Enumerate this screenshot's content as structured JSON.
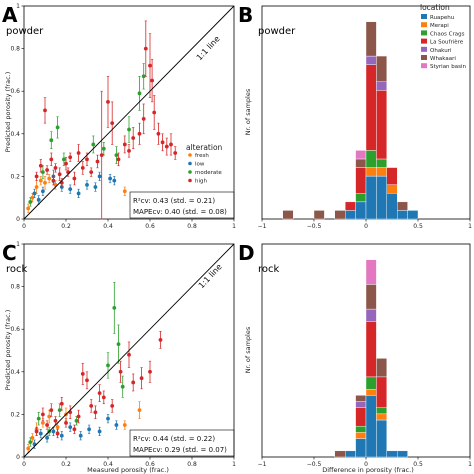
{
  "chart_data": [
    {
      "panel": "A",
      "subtitle": "powder",
      "type": "scatter",
      "xlabel": "",
      "ylabel": "Predicted porosity (frac.)",
      "xlim": [
        0,
        1
      ],
      "ylim": [
        0,
        1
      ],
      "xticks": [
        "0",
        "0.2",
        "0.4",
        "0.6",
        "0.8",
        "1"
      ],
      "yticks": [
        "0",
        "0.2",
        "0.4",
        "0.6",
        "0.8",
        "1"
      ],
      "line_label": "1:1 line",
      "legend_title": "alteration",
      "legend": [
        {
          "name": "fresh",
          "color": "#ff7f0e"
        },
        {
          "name": "low",
          "color": "#1f77b4"
        },
        {
          "name": "moderate",
          "color": "#2ca02c"
        },
        {
          "name": "high",
          "color": "#d62728"
        }
      ],
      "stats": {
        "r2": "R²cv: 0.43 (std. = 0.21)",
        "mape": "MAPEcv: 0.40 (std. = 0.08)"
      },
      "points": [
        {
          "x": 0.02,
          "y": 0.05,
          "e": 0.02,
          "s": "fresh"
        },
        {
          "x": 0.04,
          "y": 0.1,
          "e": 0.02,
          "s": "fresh"
        },
        {
          "x": 0.06,
          "y": 0.15,
          "e": 0.03,
          "s": "fresh"
        },
        {
          "x": 0.05,
          "y": 0.12,
          "e": 0.02,
          "s": "low"
        },
        {
          "x": 0.08,
          "y": 0.18,
          "e": 0.02,
          "s": "fresh"
        },
        {
          "x": 0.1,
          "y": 0.17,
          "e": 0.03,
          "s": "fresh"
        },
        {
          "x": 0.12,
          "y": 0.19,
          "e": 0.02,
          "s": "fresh"
        },
        {
          "x": 0.15,
          "y": 0.16,
          "e": 0.02,
          "s": "fresh"
        },
        {
          "x": 0.07,
          "y": 0.09,
          "e": 0.02,
          "s": "low"
        },
        {
          "x": 0.09,
          "y": 0.13,
          "e": 0.02,
          "s": "low"
        },
        {
          "x": 0.14,
          "y": 0.2,
          "e": 0.03,
          "s": "low"
        },
        {
          "x": 0.18,
          "y": 0.15,
          "e": 0.02,
          "s": "low"
        },
        {
          "x": 0.22,
          "y": 0.14,
          "e": 0.02,
          "s": "low"
        },
        {
          "x": 0.26,
          "y": 0.12,
          "e": 0.02,
          "s": "low"
        },
        {
          "x": 0.3,
          "y": 0.16,
          "e": 0.02,
          "s": "low"
        },
        {
          "x": 0.34,
          "y": 0.15,
          "e": 0.02,
          "s": "low"
        },
        {
          "x": 0.36,
          "y": 0.2,
          "e": 0.02,
          "s": "low"
        },
        {
          "x": 0.41,
          "y": 0.19,
          "e": 0.02,
          "s": "low"
        },
        {
          "x": 0.48,
          "y": 0.13,
          "e": 0.02,
          "s": "fresh"
        },
        {
          "x": 0.43,
          "y": 0.18,
          "e": 0.02,
          "s": "low"
        },
        {
          "x": 0.03,
          "y": 0.08,
          "e": 0.02,
          "s": "moderate"
        },
        {
          "x": 0.09,
          "y": 0.22,
          "e": 0.03,
          "s": "moderate"
        },
        {
          "x": 0.13,
          "y": 0.37,
          "e": 0.04,
          "s": "moderate"
        },
        {
          "x": 0.16,
          "y": 0.43,
          "e": 0.05,
          "s": "moderate"
        },
        {
          "x": 0.19,
          "y": 0.28,
          "e": 0.03,
          "s": "moderate"
        },
        {
          "x": 0.33,
          "y": 0.35,
          "e": 0.04,
          "s": "moderate"
        },
        {
          "x": 0.38,
          "y": 0.33,
          "e": 0.03,
          "s": "moderate"
        },
        {
          "x": 0.44,
          "y": 0.3,
          "e": 0.04,
          "s": "moderate"
        },
        {
          "x": 0.5,
          "y": 0.42,
          "e": 0.06,
          "s": "moderate"
        },
        {
          "x": 0.55,
          "y": 0.59,
          "e": 0.08,
          "s": "moderate"
        },
        {
          "x": 0.57,
          "y": 0.67,
          "e": 0.06,
          "s": "moderate"
        },
        {
          "x": 0.06,
          "y": 0.2,
          "e": 0.02,
          "s": "high"
        },
        {
          "x": 0.08,
          "y": 0.25,
          "e": 0.03,
          "s": "high"
        },
        {
          "x": 0.1,
          "y": 0.51,
          "e": 0.06,
          "s": "high"
        },
        {
          "x": 0.11,
          "y": 0.23,
          "e": 0.02,
          "s": "high"
        },
        {
          "x": 0.13,
          "y": 0.28,
          "e": 0.03,
          "s": "high"
        },
        {
          "x": 0.15,
          "y": 0.24,
          "e": 0.02,
          "s": "high"
        },
        {
          "x": 0.17,
          "y": 0.21,
          "e": 0.03,
          "s": "high"
        },
        {
          "x": 0.2,
          "y": 0.26,
          "e": 0.03,
          "s": "high"
        },
        {
          "x": 0.22,
          "y": 0.29,
          "e": 0.02,
          "s": "high"
        },
        {
          "x": 0.24,
          "y": 0.19,
          "e": 0.03,
          "s": "high"
        },
        {
          "x": 0.26,
          "y": 0.31,
          "e": 0.04,
          "s": "high"
        },
        {
          "x": 0.28,
          "y": 0.24,
          "e": 0.03,
          "s": "high"
        },
        {
          "x": 0.3,
          "y": 0.28,
          "e": 0.03,
          "s": "high"
        },
        {
          "x": 0.32,
          "y": 0.22,
          "e": 0.02,
          "s": "high"
        },
        {
          "x": 0.35,
          "y": 0.27,
          "e": 0.03,
          "s": "high"
        },
        {
          "x": 0.37,
          "y": 0.3,
          "e": 0.3,
          "s": "high"
        },
        {
          "x": 0.4,
          "y": 0.55,
          "e": 0.12,
          "s": "high"
        },
        {
          "x": 0.42,
          "y": 0.45,
          "e": 0.1,
          "s": "high"
        },
        {
          "x": 0.45,
          "y": 0.28,
          "e": 0.03,
          "s": "high"
        },
        {
          "x": 0.48,
          "y": 0.35,
          "e": 0.04,
          "s": "high"
        },
        {
          "x": 0.5,
          "y": 0.32,
          "e": 0.03,
          "s": "high"
        },
        {
          "x": 0.52,
          "y": 0.38,
          "e": 0.05,
          "s": "high"
        },
        {
          "x": 0.55,
          "y": 0.4,
          "e": 0.05,
          "s": "high"
        },
        {
          "x": 0.57,
          "y": 0.47,
          "e": 0.07,
          "s": "high"
        },
        {
          "x": 0.58,
          "y": 0.8,
          "e": 0.13,
          "s": "high"
        },
        {
          "x": 0.6,
          "y": 0.72,
          "e": 0.15,
          "s": "high"
        },
        {
          "x": 0.61,
          "y": 0.65,
          "e": 0.1,
          "s": "high"
        },
        {
          "x": 0.62,
          "y": 0.5,
          "e": 0.08,
          "s": "high"
        },
        {
          "x": 0.64,
          "y": 0.4,
          "e": 0.05,
          "s": "high"
        },
        {
          "x": 0.66,
          "y": 0.36,
          "e": 0.04,
          "s": "high"
        },
        {
          "x": 0.68,
          "y": 0.34,
          "e": 0.04,
          "s": "high"
        },
        {
          "x": 0.7,
          "y": 0.35,
          "e": 0.05,
          "s": "high"
        },
        {
          "x": 0.72,
          "y": 0.31,
          "e": 0.03,
          "s": "high"
        },
        {
          "x": 0.14,
          "y": 0.18,
          "e": 0.02,
          "s": "high"
        },
        {
          "x": 0.18,
          "y": 0.17,
          "e": 0.02,
          "s": "high"
        },
        {
          "x": 0.21,
          "y": 0.22,
          "e": 0.02,
          "s": "high"
        }
      ]
    },
    {
      "panel": "B",
      "subtitle": "powder",
      "type": "bar",
      "stacked": true,
      "xlabel": "",
      "ylabel": "Nr. of samples",
      "xlim": [
        -1,
        1
      ],
      "xticks": [
        "−1",
        "−0.5",
        "0",
        "0.5",
        "1"
      ],
      "legend_title": "location",
      "legend": [
        {
          "name": "Ruapehu",
          "color": "#1f77b4"
        },
        {
          "name": "Merapi",
          "color": "#ff7f0e"
        },
        {
          "name": "Chaos Crags",
          "color": "#2ca02c"
        },
        {
          "name": "La Soufrière",
          "color": "#d62728"
        },
        {
          "name": "Ohakuri",
          "color": "#9467bd"
        },
        {
          "name": "Whakaari",
          "color": "#8c564b"
        },
        {
          "name": "Styrian basin",
          "color": "#e377c2"
        }
      ],
      "bin_width": 0.1,
      "bins": [
        {
          "x0": -0.8,
          "counts": [
            0,
            0,
            0,
            0,
            0,
            1,
            0
          ]
        },
        {
          "x0": -0.5,
          "counts": [
            0,
            0,
            0,
            0,
            0,
            1,
            0
          ]
        },
        {
          "x0": -0.3,
          "counts": [
            0,
            0,
            0,
            0,
            0,
            1,
            0
          ]
        },
        {
          "x0": -0.2,
          "counts": [
            1,
            0,
            0,
            1,
            0,
            0,
            0
          ]
        },
        {
          "x0": -0.1,
          "counts": [
            2,
            0,
            1,
            3,
            0,
            1,
            1
          ]
        },
        {
          "x0": 0.0,
          "counts": [
            5,
            1,
            2,
            10,
            1,
            4,
            0
          ]
        },
        {
          "x0": 0.1,
          "counts": [
            5,
            1,
            1,
            8,
            1,
            3,
            0
          ]
        },
        {
          "x0": 0.2,
          "counts": [
            3,
            1,
            0,
            2,
            0,
            0,
            0
          ]
        },
        {
          "x0": 0.3,
          "counts": [
            1,
            0,
            0,
            0,
            0,
            1,
            0
          ]
        },
        {
          "x0": 0.4,
          "counts": [
            1,
            0,
            0,
            0,
            0,
            0,
            0
          ]
        }
      ]
    },
    {
      "panel": "C",
      "subtitle": "rock",
      "type": "scatter",
      "xlabel": "Measured porosity (frac.)",
      "ylabel": "Predicted porosity (frac.)",
      "xlim": [
        0,
        1
      ],
      "ylim": [
        0,
        1
      ],
      "xticks": [
        "0",
        "0.2",
        "0.4",
        "0.6",
        "0.8",
        "1"
      ],
      "yticks": [
        "0",
        "0.2",
        "0.4",
        "0.6",
        "0.8",
        "1"
      ],
      "line_label": "1:1 line",
      "stats": {
        "r2": "R²cv: 0.44 (std. = 0.22)",
        "mape": "MAPEcv: 0.29 (std. = 0.07)"
      },
      "points": [
        {
          "x": 0.02,
          "y": 0.04,
          "e": 0.02,
          "s": "fresh"
        },
        {
          "x": 0.04,
          "y": 0.09,
          "e": 0.02,
          "s": "fresh"
        },
        {
          "x": 0.06,
          "y": 0.13,
          "e": 0.03,
          "s": "fresh"
        },
        {
          "x": 0.09,
          "y": 0.16,
          "e": 0.02,
          "s": "fresh"
        },
        {
          "x": 0.12,
          "y": 0.19,
          "e": 0.03,
          "s": "fresh"
        },
        {
          "x": 0.16,
          "y": 0.14,
          "e": 0.02,
          "s": "fresh"
        },
        {
          "x": 0.2,
          "y": 0.2,
          "e": 0.03,
          "s": "fresh"
        },
        {
          "x": 0.48,
          "y": 0.15,
          "e": 0.02,
          "s": "fresh"
        },
        {
          "x": 0.55,
          "y": 0.22,
          "e": 0.04,
          "s": "fresh"
        },
        {
          "x": 0.05,
          "y": 0.06,
          "e": 0.02,
          "s": "low"
        },
        {
          "x": 0.08,
          "y": 0.11,
          "e": 0.02,
          "s": "low"
        },
        {
          "x": 0.11,
          "y": 0.09,
          "e": 0.02,
          "s": "low"
        },
        {
          "x": 0.14,
          "y": 0.12,
          "e": 0.02,
          "s": "low"
        },
        {
          "x": 0.18,
          "y": 0.1,
          "e": 0.02,
          "s": "low"
        },
        {
          "x": 0.22,
          "y": 0.14,
          "e": 0.02,
          "s": "low"
        },
        {
          "x": 0.27,
          "y": 0.1,
          "e": 0.02,
          "s": "low"
        },
        {
          "x": 0.31,
          "y": 0.13,
          "e": 0.02,
          "s": "low"
        },
        {
          "x": 0.36,
          "y": 0.12,
          "e": 0.02,
          "s": "low"
        },
        {
          "x": 0.4,
          "y": 0.18,
          "e": 0.02,
          "s": "low"
        },
        {
          "x": 0.44,
          "y": 0.15,
          "e": 0.02,
          "s": "low"
        },
        {
          "x": 0.03,
          "y": 0.07,
          "e": 0.02,
          "s": "moderate"
        },
        {
          "x": 0.07,
          "y": 0.18,
          "e": 0.03,
          "s": "moderate"
        },
        {
          "x": 0.12,
          "y": 0.12,
          "e": 0.02,
          "s": "moderate"
        },
        {
          "x": 0.17,
          "y": 0.22,
          "e": 0.03,
          "s": "moderate"
        },
        {
          "x": 0.25,
          "y": 0.17,
          "e": 0.02,
          "s": "moderate"
        },
        {
          "x": 0.4,
          "y": 0.43,
          "e": 0.06,
          "s": "moderate"
        },
        {
          "x": 0.43,
          "y": 0.7,
          "e": 0.12,
          "s": "moderate"
        },
        {
          "x": 0.45,
          "y": 0.53,
          "e": 0.09,
          "s": "moderate"
        },
        {
          "x": 0.47,
          "y": 0.33,
          "e": 0.05,
          "s": "moderate"
        },
        {
          "x": 0.06,
          "y": 0.12,
          "e": 0.02,
          "s": "high"
        },
        {
          "x": 0.09,
          "y": 0.2,
          "e": 0.03,
          "s": "high"
        },
        {
          "x": 0.11,
          "y": 0.15,
          "e": 0.02,
          "s": "high"
        },
        {
          "x": 0.13,
          "y": 0.22,
          "e": 0.03,
          "s": "high"
        },
        {
          "x": 0.15,
          "y": 0.17,
          "e": 0.02,
          "s": "high"
        },
        {
          "x": 0.18,
          "y": 0.25,
          "e": 0.03,
          "s": "high"
        },
        {
          "x": 0.2,
          "y": 0.16,
          "e": 0.02,
          "s": "high"
        },
        {
          "x": 0.22,
          "y": 0.21,
          "e": 0.03,
          "s": "high"
        },
        {
          "x": 0.24,
          "y": 0.13,
          "e": 0.02,
          "s": "high"
        },
        {
          "x": 0.26,
          "y": 0.19,
          "e": 0.03,
          "s": "high"
        },
        {
          "x": 0.28,
          "y": 0.39,
          "e": 0.05,
          "s": "high"
        },
        {
          "x": 0.3,
          "y": 0.36,
          "e": 0.04,
          "s": "high"
        },
        {
          "x": 0.32,
          "y": 0.24,
          "e": 0.03,
          "s": "high"
        },
        {
          "x": 0.34,
          "y": 0.21,
          "e": 0.03,
          "s": "high"
        },
        {
          "x": 0.36,
          "y": 0.3,
          "e": 0.04,
          "s": "high"
        },
        {
          "x": 0.38,
          "y": 0.28,
          "e": 0.03,
          "s": "high"
        },
        {
          "x": 0.42,
          "y": 0.24,
          "e": 0.03,
          "s": "high"
        },
        {
          "x": 0.46,
          "y": 0.4,
          "e": 0.05,
          "s": "high"
        },
        {
          "x": 0.5,
          "y": 0.48,
          "e": 0.06,
          "s": "high"
        },
        {
          "x": 0.52,
          "y": 0.35,
          "e": 0.04,
          "s": "high"
        },
        {
          "x": 0.56,
          "y": 0.37,
          "e": 0.05,
          "s": "high"
        },
        {
          "x": 0.6,
          "y": 0.4,
          "e": 0.05,
          "s": "high"
        },
        {
          "x": 0.65,
          "y": 0.55,
          "e": 0.04,
          "s": "high"
        },
        {
          "x": 0.16,
          "y": 0.11,
          "e": 0.02,
          "s": "high"
        }
      ]
    },
    {
      "panel": "D",
      "subtitle": "rock",
      "type": "bar",
      "stacked": true,
      "xlabel": "Difference in porosity (frac.)",
      "ylabel": "Nr. of samples",
      "xlim": [
        -1,
        1
      ],
      "xticks": [
        "−1",
        "−0.5",
        "0",
        "0.5",
        "1"
      ],
      "bin_width": 0.1,
      "bins": [
        {
          "x0": -0.3,
          "counts": [
            0,
            0,
            0,
            0,
            0,
            1,
            0
          ]
        },
        {
          "x0": -0.2,
          "counts": [
            1,
            0,
            0,
            0,
            0,
            0,
            0
          ]
        },
        {
          "x0": -0.1,
          "counts": [
            3,
            1,
            1,
            3,
            1,
            1,
            0
          ]
        },
        {
          "x0": 0.0,
          "counts": [
            10,
            1,
            2,
            9,
            2,
            4,
            4
          ]
        },
        {
          "x0": 0.1,
          "counts": [
            6,
            1,
            1,
            5,
            0,
            3,
            0
          ]
        },
        {
          "x0": 0.2,
          "counts": [
            1,
            0,
            0,
            0,
            0,
            0,
            0
          ]
        },
        {
          "x0": 0.3,
          "counts": [
            1,
            0,
            0,
            0,
            0,
            0,
            0
          ]
        }
      ]
    }
  ]
}
